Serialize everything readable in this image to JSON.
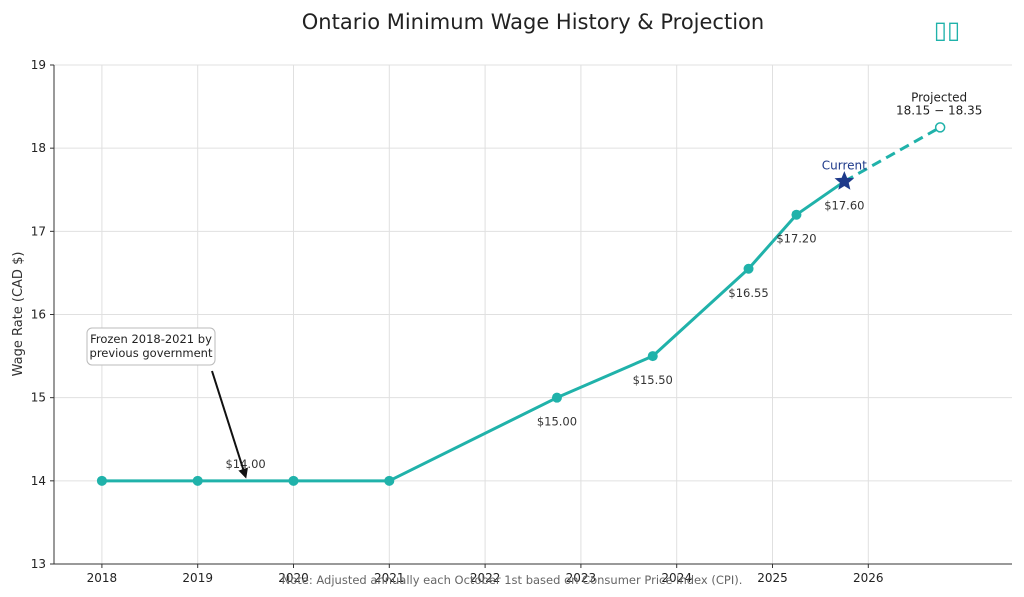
{
  "header": {
    "title": "Ontario Minimum Wage History & Projection",
    "corner_glyph": "▯▯"
  },
  "colors": {
    "line": "#20b2aa",
    "current_marker": "#1e3a8a",
    "grid": "#e0e0e0",
    "text": "#222222"
  },
  "chart_data": {
    "type": "line",
    "title": "Ontario Minimum Wage History & Projection",
    "xlabel": "",
    "ylabel": "Wage Rate (CAD $)",
    "xlim": [
      2017.5,
      2027.5
    ],
    "ylim": [
      13,
      19
    ],
    "x_ticks": [
      2018,
      2019,
      2020,
      2021,
      2022,
      2023,
      2024,
      2025,
      2026
    ],
    "y_ticks": [
      13,
      14,
      15,
      16,
      17,
      18,
      19
    ],
    "grid": true,
    "series": [
      {
        "style": "solid",
        "x": [
          2018,
          2019,
          2020,
          2021,
          2022.75,
          2023.75,
          2024.75,
          2025.25,
          2025.75
        ],
        "y": [
          14.0,
          14.0,
          14.0,
          14.0,
          15.0,
          15.5,
          16.55,
          17.2,
          17.6
        ]
      },
      {
        "style": "dashed",
        "x": [
          2025.75,
          2026.75
        ],
        "y": [
          17.6,
          18.25
        ]
      }
    ],
    "data_labels": [
      {
        "x": 2019.5,
        "y": 14.0,
        "text": "$14.00"
      },
      {
        "x": 2022.75,
        "y": 15.0,
        "text": "$15.00"
      },
      {
        "x": 2023.75,
        "y": 15.5,
        "text": "$15.50"
      },
      {
        "x": 2024.75,
        "y": 16.55,
        "text": "$16.55"
      },
      {
        "x": 2025.25,
        "y": 17.2,
        "text": "$17.20"
      },
      {
        "x": 2025.75,
        "y": 17.6,
        "text": "$17.60"
      }
    ],
    "current_marker": {
      "x": 2025.75,
      "y": 17.6,
      "label": "Current"
    },
    "projected_marker": {
      "x": 2026.75,
      "y": 18.25,
      "label_line1": "Projected",
      "label_line2": "18.15 − 18.35"
    },
    "annotation": {
      "text_line1": "Frozen 2018-2021 by",
      "text_line2": "previous government",
      "arrow_to": {
        "x": 2019.5,
        "y": 14.05
      }
    },
    "note": "Note: Adjusted annually each October 1st based on Consumer Price Index (CPI)."
  }
}
